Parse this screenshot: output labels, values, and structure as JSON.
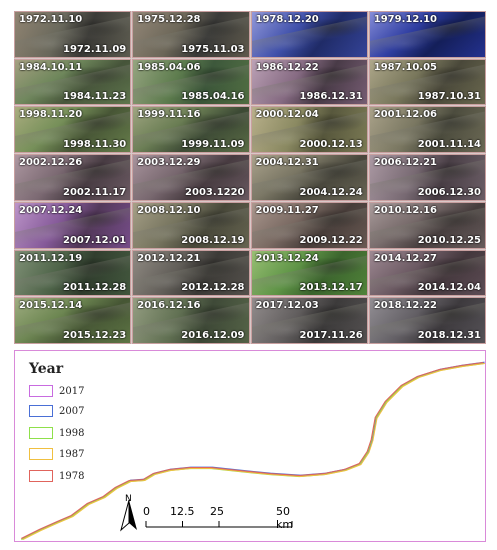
{
  "tiles": [
    {
      "top": "1972.11.10",
      "bottom": "1972.11.09",
      "palette": [
        "#3b3a36",
        "#6b6a5c",
        "#8a7d6a"
      ]
    },
    {
      "top": "1975.12.28",
      "bottom": "1975.11.03",
      "palette": [
        "#3a3a38",
        "#6e6858",
        "#8d8070"
      ]
    },
    {
      "top": "1978.12.20",
      "bottom": "",
      "palette": [
        "#1d2a6e",
        "#3d4fb2",
        "#8c93d8"
      ]
    },
    {
      "top": "1979.12.10",
      "bottom": "",
      "palette": [
        "#101c5e",
        "#2a3aa8",
        "#7e86d6"
      ]
    },
    {
      "top": "1984.10.11",
      "bottom": "1984.11.23",
      "palette": [
        "#4a5a3c",
        "#6f8a5a",
        "#a09a7a"
      ]
    },
    {
      "top": "1985.04.06",
      "bottom": "1985.04.16",
      "palette": [
        "#3c5a3a",
        "#5d7f4c",
        "#8f9f78"
      ]
    },
    {
      "top": "1986.12.22",
      "bottom": "1986.12.31",
      "palette": [
        "#4a3a48",
        "#8a6c86",
        "#b89cb2"
      ]
    },
    {
      "top": "1987.10.05",
      "bottom": "1987.10.31",
      "palette": [
        "#4c4a3a",
        "#7c7a5c",
        "#a9a283"
      ]
    },
    {
      "top": "1998.11.20",
      "bottom": "1998.11.30",
      "palette": [
        "#4a5a36",
        "#789458",
        "#a6a878"
      ]
    },
    {
      "top": "1999.11.16",
      "bottom": "1999.11.09",
      "palette": [
        "#3f4e36",
        "#6b8052",
        "#9aa07a"
      ]
    },
    {
      "top": "2000.12.04",
      "bottom": "2000.12.13",
      "palette": [
        "#5a5a3c",
        "#8f8e62",
        "#b5ac84"
      ]
    },
    {
      "top": "2001.12.06",
      "bottom": "2001.11.14",
      "palette": [
        "#4e4e3e",
        "#7d7a62",
        "#a49c82"
      ]
    },
    {
      "top": "2002.12.26",
      "bottom": "2002.11.17",
      "palette": [
        "#4a3c44",
        "#7e6a74",
        "#a9929c"
      ]
    },
    {
      "top": "2003.12.29",
      "bottom": "2003.1220",
      "palette": [
        "#4a3c42",
        "#7a6870",
        "#a48e98"
      ]
    },
    {
      "top": "2004.12.31",
      "bottom": "2004.12.24",
      "palette": [
        "#4c4a3e",
        "#7c7864",
        "#a79e86"
      ]
    },
    {
      "top": "2006.12.21",
      "bottom": "2006.12.30",
      "palette": [
        "#4a3e46",
        "#7c6c76",
        "#a6939e"
      ]
    },
    {
      "top": "2007.12.24",
      "bottom": "2007.12.01",
      "palette": [
        "#56385e",
        "#8a5aa0",
        "#b98fc6"
      ]
    },
    {
      "top": "2008.12.10",
      "bottom": "2008.12.19",
      "palette": [
        "#4a4a3a",
        "#78765e",
        "#a19a80"
      ]
    },
    {
      "top": "2009.11.27",
      "bottom": "2009.12.22",
      "palette": [
        "#4a3e3a",
        "#7c6a62",
        "#a69288"
      ]
    },
    {
      "top": "2010.12.16",
      "bottom": "2010.12.25",
      "palette": [
        "#4a4040",
        "#7a6c6c",
        "#a59696"
      ]
    },
    {
      "top": "2011.12.19",
      "bottom": "2011.12.28",
      "palette": [
        "#2f3e2c",
        "#4c6446",
        "#788a6e"
      ]
    },
    {
      "top": "2012.12.21",
      "bottom": "2012.12.28",
      "palette": [
        "#3c3a36",
        "#625e58",
        "#8a847c"
      ]
    },
    {
      "top": "2013.12.24",
      "bottom": "2013.12.17",
      "palette": [
        "#3c6a2c",
        "#5f9a44",
        "#93bc6c"
      ]
    },
    {
      "top": "2014.12.27",
      "bottom": "2014.12.04",
      "palette": [
        "#46383e",
        "#6e5a64",
        "#98828c"
      ]
    },
    {
      "top": "2015.12.14",
      "bottom": "2015.12.23",
      "palette": [
        "#4a5c36",
        "#6e8a50",
        "#9aa87a"
      ]
    },
    {
      "top": "2016.12.16",
      "bottom": "2016.12.09",
      "palette": [
        "#3e4a36",
        "#627352",
        "#8e987a"
      ]
    },
    {
      "top": "2017.12.03",
      "bottom": "2017.11.26",
      "palette": [
        "#3c3a3a",
        "#625e5e",
        "#8c8686"
      ]
    },
    {
      "top": "2018.12.22",
      "bottom": "2018.12.31",
      "palette": [
        "#3e3a3e",
        "#646066",
        "#8c888e"
      ]
    }
  ],
  "legend": {
    "title": "Year",
    "items": [
      {
        "label": "2017",
        "color": "#c86be0"
      },
      {
        "label": "2007",
        "color": "#4a6fd6"
      },
      {
        "label": "1998",
        "color": "#8fe04a"
      },
      {
        "label": "1987",
        "color": "#f0c040"
      },
      {
        "label": "1978",
        "color": "#e0645c"
      }
    ]
  },
  "scale": {
    "ticks": [
      "0",
      "12.5",
      "25",
      "50 km"
    ],
    "north": "N"
  }
}
